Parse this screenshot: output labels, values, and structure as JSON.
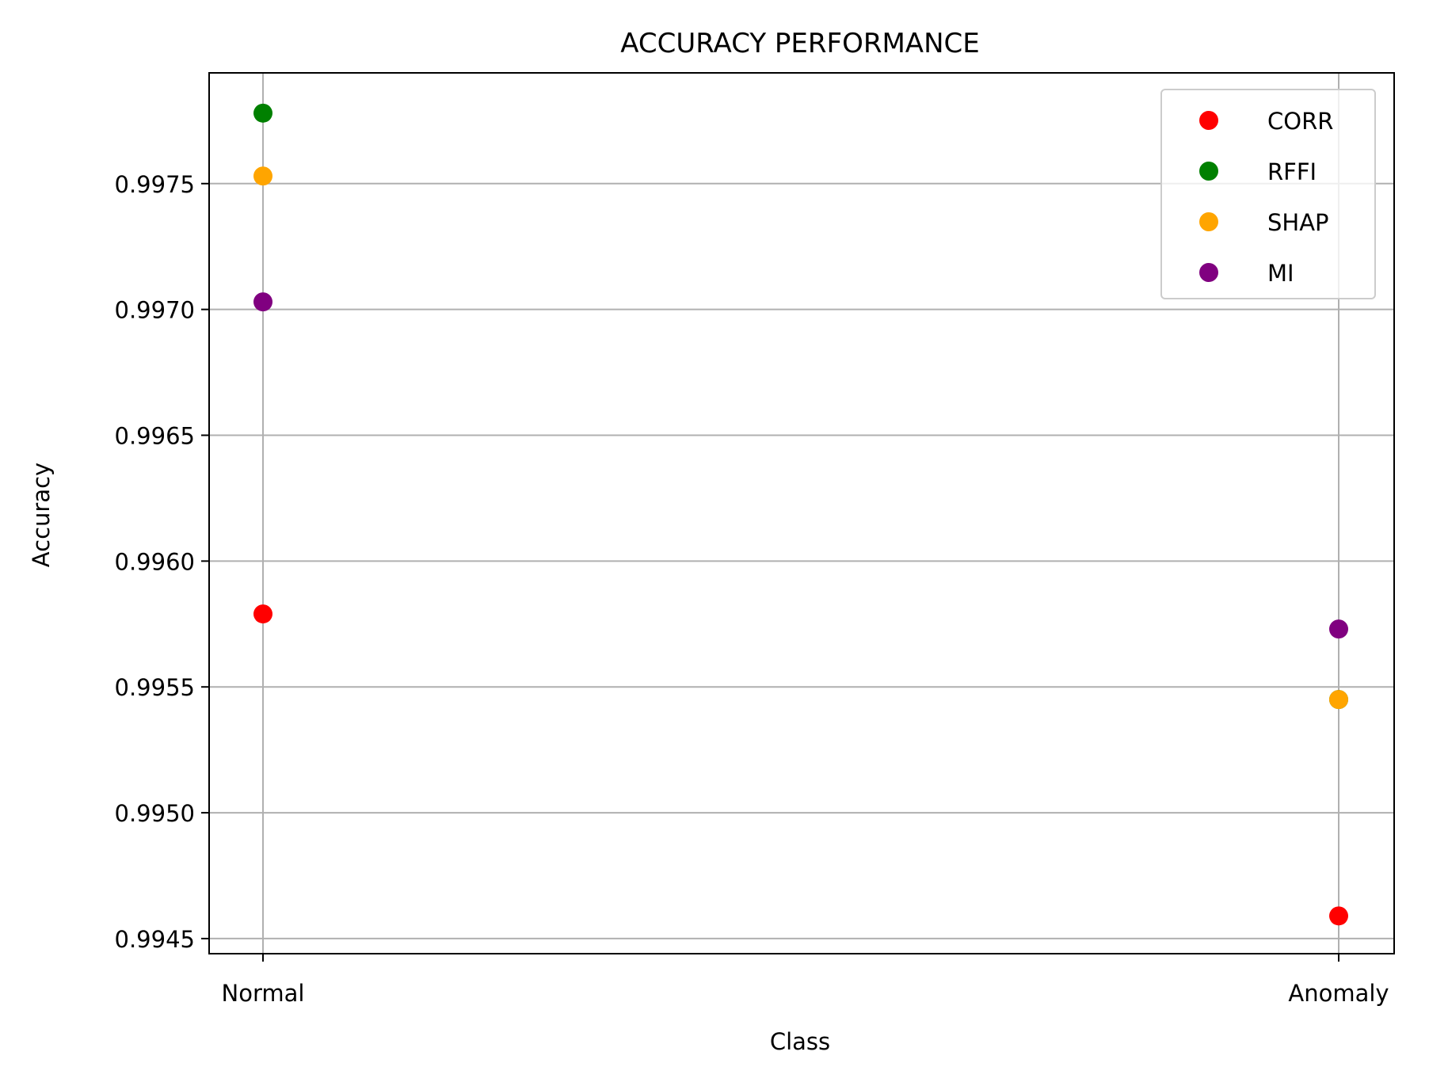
{
  "chart_data": {
    "type": "scatter",
    "title": "ACCURACY PERFORMANCE",
    "xlabel": "Class",
    "ylabel": "Accuracy",
    "categories": [
      "Normal",
      "Anomaly"
    ],
    "ylim": [
      0.99444,
      0.99794
    ],
    "yticks": [
      0.9945,
      0.995,
      0.9955,
      0.996,
      0.9965,
      0.997,
      0.9975
    ],
    "ytick_labels": [
      "0.9945",
      "0.9950",
      "0.9955",
      "0.9960",
      "0.9965",
      "0.9970",
      "0.9975"
    ],
    "grid": true,
    "legend_position": "top-right",
    "series": [
      {
        "name": "CORR",
        "color": "#ff0000",
        "values": [
          0.99579,
          0.99459
        ]
      },
      {
        "name": "RFFI",
        "color": "#008000",
        "values": [
          0.99778,
          0.99545
        ]
      },
      {
        "name": "SHAP",
        "color": "#ffa500",
        "values": [
          0.99753,
          0.99545
        ]
      },
      {
        "name": "MI",
        "color": "#800080",
        "values": [
          0.99703,
          0.99573
        ]
      }
    ]
  }
}
